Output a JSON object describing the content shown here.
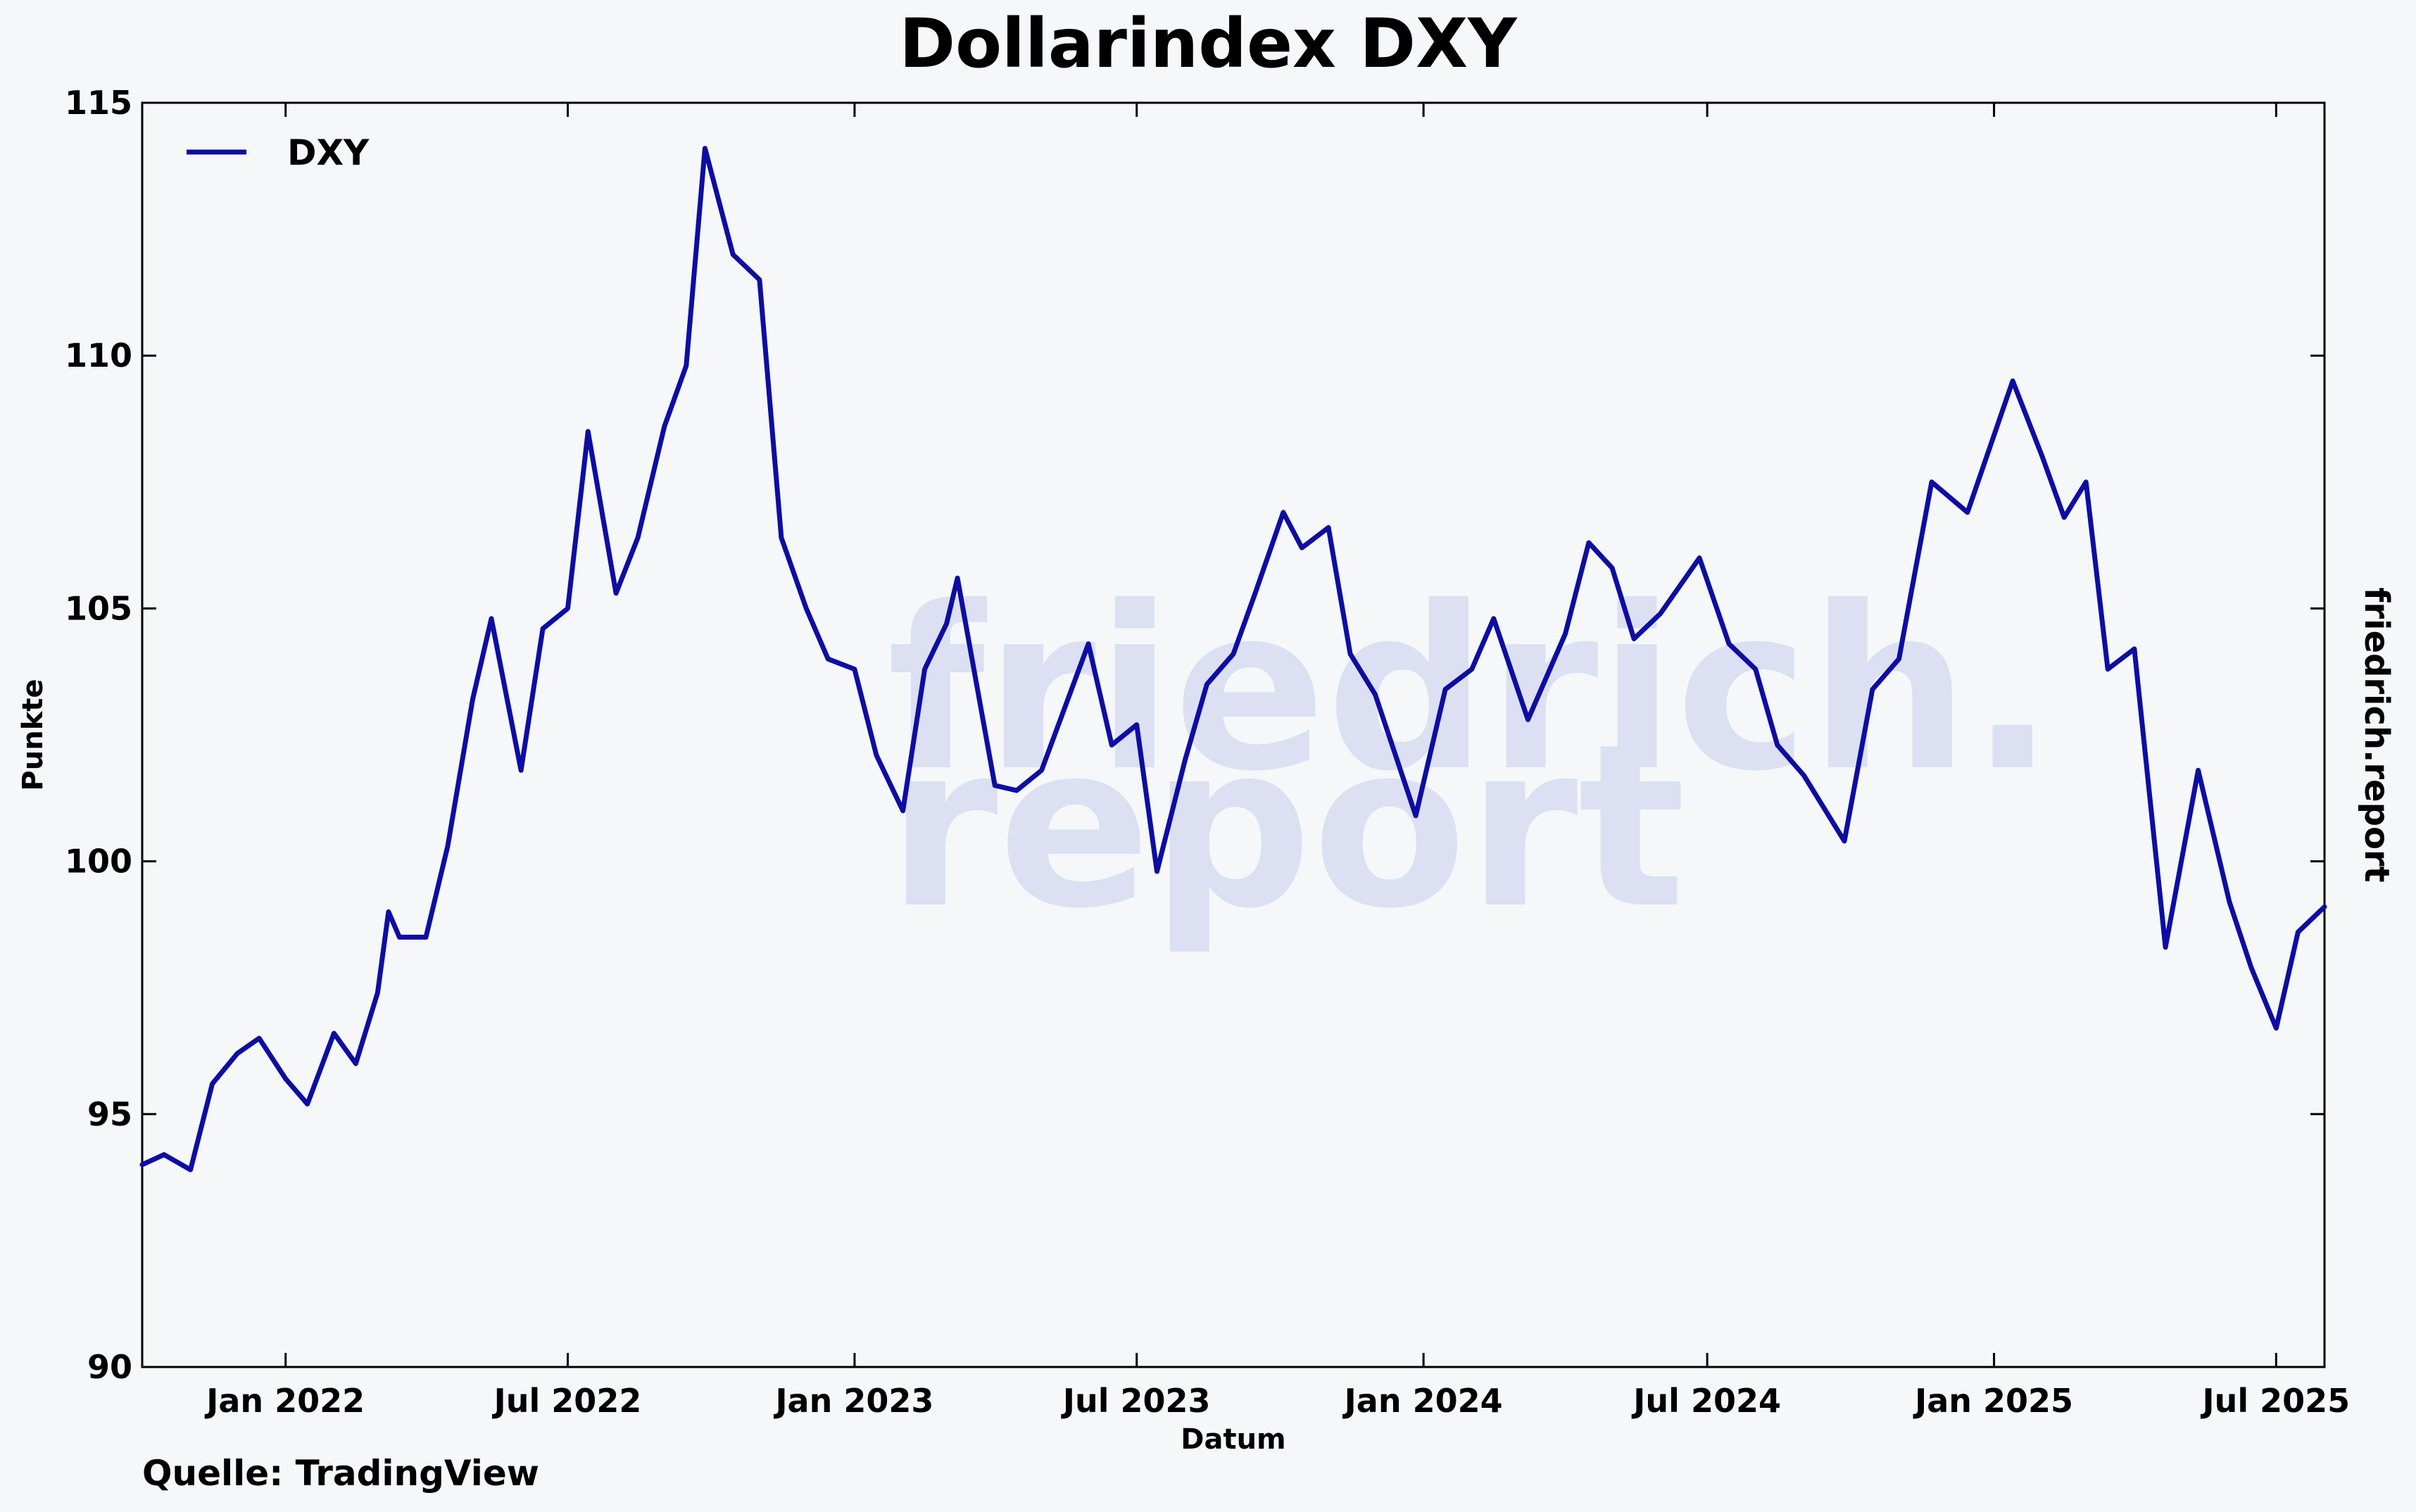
{
  "chart_data": {
    "type": "line",
    "title": "Dollarindex DXY",
    "xlabel": "Datum",
    "ylabel": "Punkte",
    "source": "Quelle: TradingView",
    "brand": "friedrich.report",
    "watermark": [
      "friedrich.",
      "report"
    ],
    "ylim": [
      90,
      115
    ],
    "yticks": [
      90,
      95,
      100,
      105,
      110,
      115
    ],
    "xlim": [
      "2021-10-01",
      "2025-08-01"
    ],
    "xticks": [
      {
        "date": "2022-01-01",
        "label": "Jan 2022"
      },
      {
        "date": "2022-07-01",
        "label": "Jul 2022"
      },
      {
        "date": "2023-01-01",
        "label": "Jan 2023"
      },
      {
        "date": "2023-07-01",
        "label": "Jul 2023"
      },
      {
        "date": "2024-01-01",
        "label": "Jan 2024"
      },
      {
        "date": "2024-07-01",
        "label": "Jul 2024"
      },
      {
        "date": "2025-01-01",
        "label": "Jan 2025"
      },
      {
        "date": "2025-07-01",
        "label": "Jul 2025"
      }
    ],
    "grid": false,
    "legend_position": "top-left",
    "color": "#0d0da3",
    "series": [
      {
        "name": "DXY",
        "x": [
          "2021-10-01",
          "2021-10-15",
          "2021-11-01",
          "2021-11-15",
          "2021-12-01",
          "2021-12-15",
          "2022-01-01",
          "2022-01-15",
          "2022-02-01",
          "2022-02-15",
          "2022-03-01",
          "2022-03-08",
          "2022-03-15",
          "2022-04-01",
          "2022-04-15",
          "2022-05-01",
          "2022-05-13",
          "2022-06-01",
          "2022-06-15",
          "2022-07-01",
          "2022-07-14",
          "2022-08-01",
          "2022-08-15",
          "2022-09-01",
          "2022-09-15",
          "2022-09-27",
          "2022-10-15",
          "2022-11-01",
          "2022-11-15",
          "2022-12-01",
          "2022-12-15",
          "2023-01-01",
          "2023-01-15",
          "2023-02-01",
          "2023-02-15",
          "2023-03-01",
          "2023-03-08",
          "2023-04-01",
          "2023-04-15",
          "2023-05-01",
          "2023-05-31",
          "2023-06-15",
          "2023-07-01",
          "2023-07-14",
          "2023-08-01",
          "2023-08-15",
          "2023-09-01",
          "2023-09-15",
          "2023-10-03",
          "2023-10-15",
          "2023-11-01",
          "2023-11-15",
          "2023-12-01",
          "2023-12-27",
          "2024-01-15",
          "2024-02-01",
          "2024-02-15",
          "2024-03-08",
          "2024-04-01",
          "2024-04-16",
          "2024-05-01",
          "2024-05-15",
          "2024-06-01",
          "2024-06-26",
          "2024-07-15",
          "2024-08-01",
          "2024-08-15",
          "2024-09-01",
          "2024-09-27",
          "2024-10-15",
          "2024-11-01",
          "2024-11-22",
          "2024-12-15",
          "2025-01-13",
          "2025-02-01",
          "2025-02-15",
          "2025-03-01",
          "2025-03-15",
          "2025-04-01",
          "2025-04-21",
          "2025-05-12",
          "2025-06-01",
          "2025-06-15",
          "2025-07-01",
          "2025-07-15",
          "2025-08-01"
        ],
        "values": [
          94.0,
          94.2,
          93.9,
          95.6,
          96.2,
          96.5,
          95.7,
          95.2,
          96.6,
          96.0,
          97.4,
          99.0,
          98.5,
          98.5,
          100.3,
          103.2,
          104.8,
          101.8,
          104.6,
          105.0,
          108.5,
          105.3,
          106.4,
          108.6,
          109.8,
          114.1,
          112.0,
          111.5,
          106.4,
          105.0,
          104.0,
          103.8,
          102.1,
          101.0,
          103.8,
          104.7,
          105.6,
          101.5,
          101.4,
          101.8,
          104.3,
          102.3,
          102.7,
          99.8,
          102.0,
          103.5,
          104.1,
          105.3,
          106.9,
          106.2,
          106.6,
          104.1,
          103.3,
          100.9,
          103.4,
          103.8,
          104.8,
          102.8,
          104.5,
          106.3,
          105.8,
          104.4,
          104.9,
          106.0,
          104.3,
          103.8,
          102.3,
          101.7,
          100.4,
          103.4,
          104.0,
          107.5,
          106.9,
          109.5,
          108.0,
          106.8,
          107.5,
          103.8,
          104.2,
          98.3,
          101.8,
          99.2,
          97.9,
          96.7,
          98.6,
          99.1
        ]
      }
    ]
  }
}
